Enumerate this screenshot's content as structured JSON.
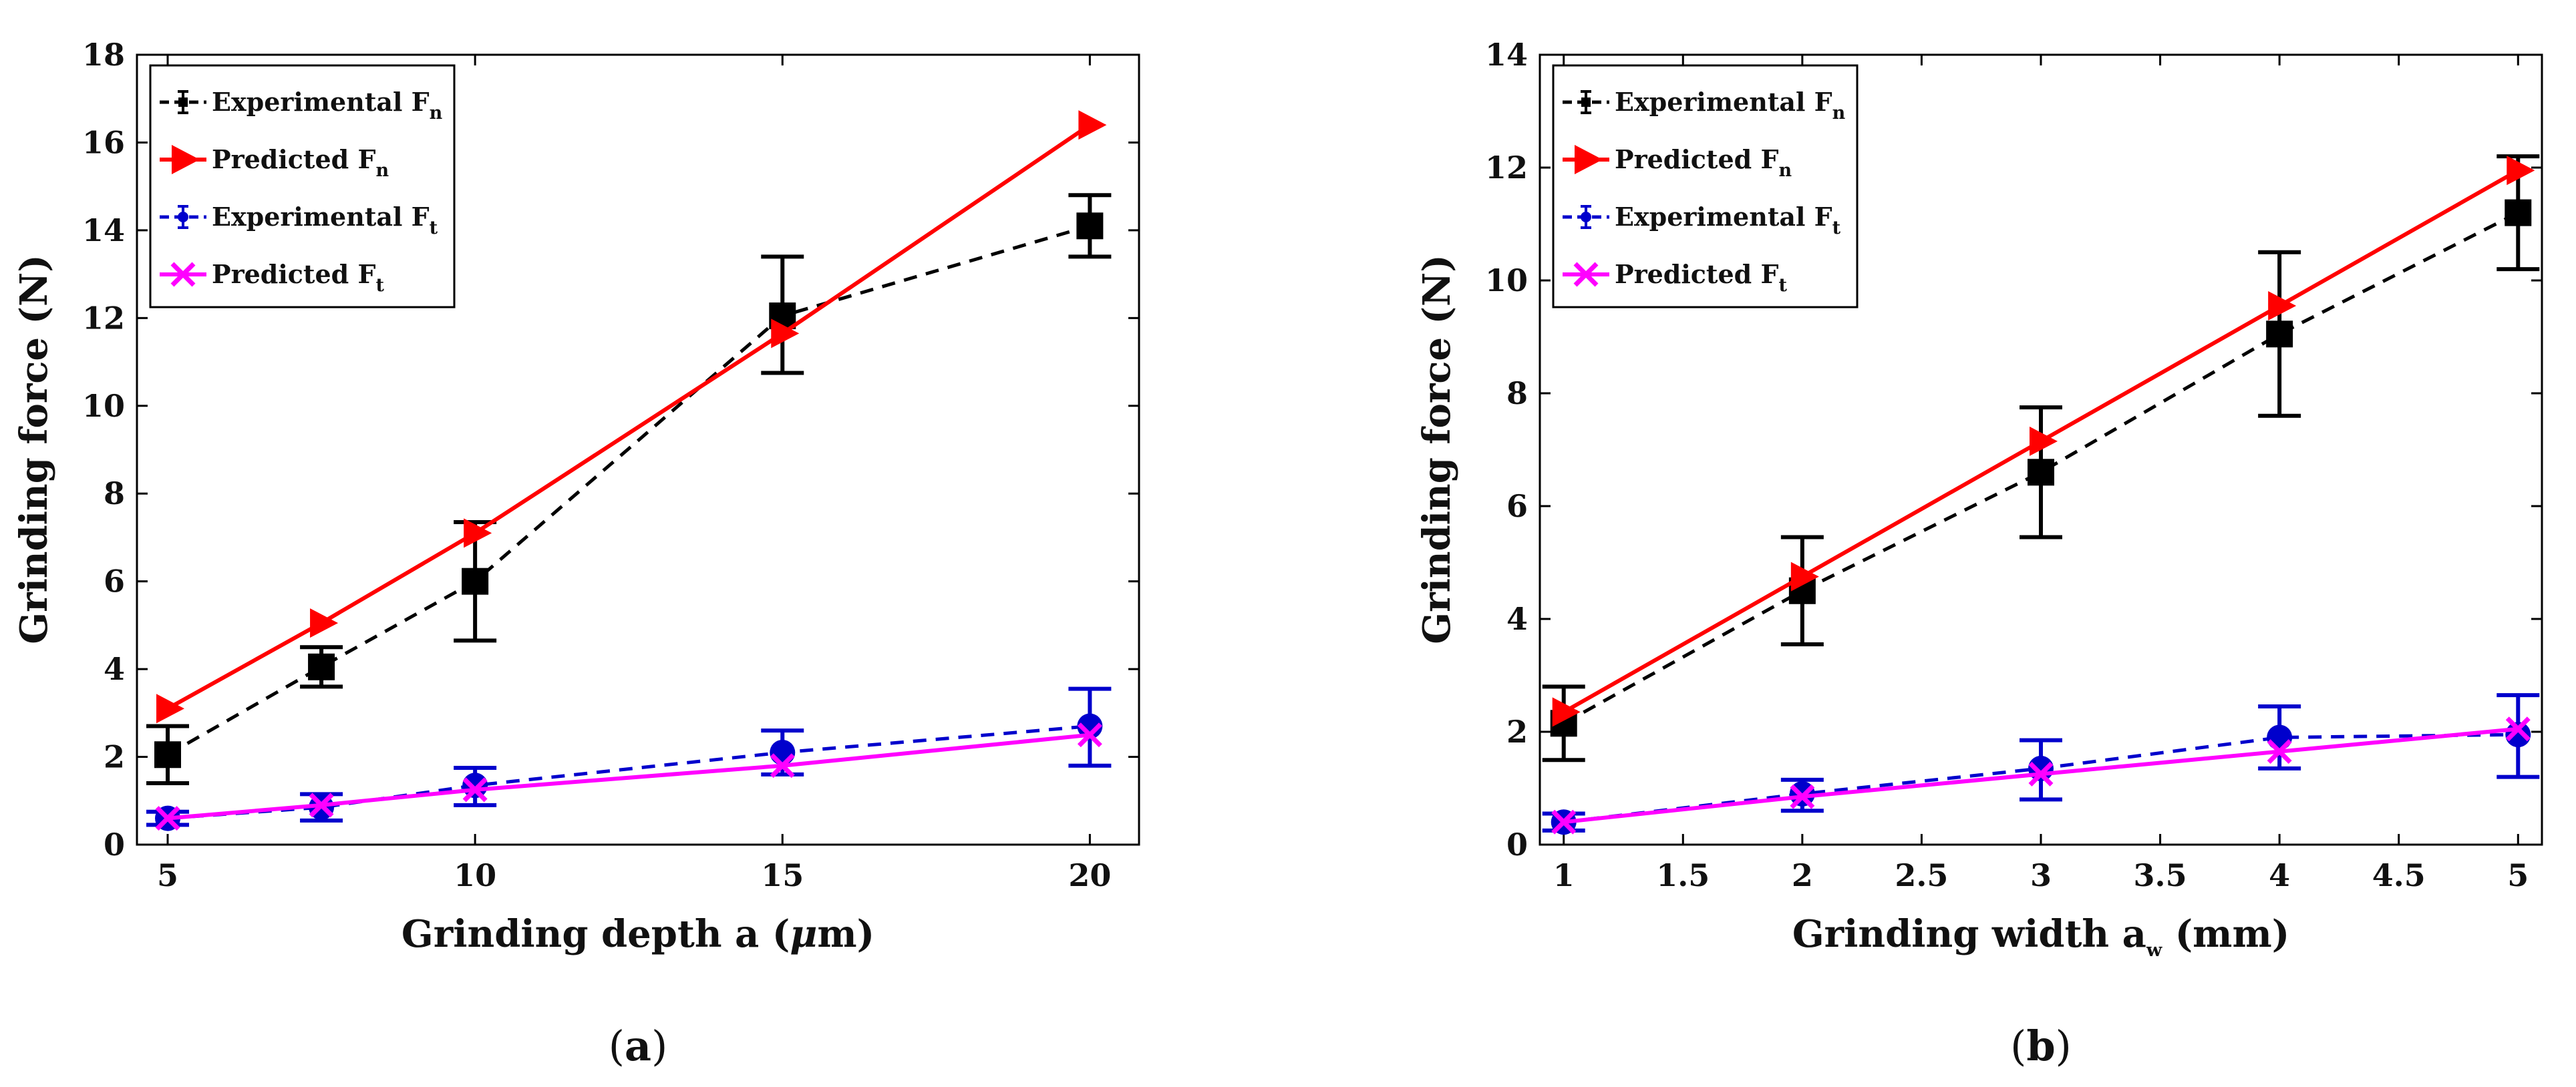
{
  "chart_data": [
    {
      "id": "a",
      "type": "line",
      "caption": {
        "open": "(",
        "letter": "a",
        "close": ")"
      },
      "xlabel": {
        "main": "Grinding depth a",
        "unit_open": "(",
        "unit_greek": "μ",
        "unit_rest": "m)"
      },
      "ylabel": "Grinding force (N)",
      "xlim": [
        4.5,
        20.8
      ],
      "ylim": [
        0,
        18
      ],
      "xticks": [
        5,
        10,
        15,
        20
      ],
      "yticks": [
        0,
        2,
        4,
        6,
        8,
        10,
        12,
        14,
        16,
        18
      ],
      "x": [
        5,
        7.5,
        10,
        15,
        20
      ],
      "grid": false,
      "legend_position": "top-left",
      "series": [
        {
          "name": "Experimental F",
          "sub": "n",
          "color": "#000000",
          "style": "dashed",
          "marker": "square",
          "values": [
            2.05,
            4.05,
            6.0,
            12.05,
            14.1
          ],
          "err_low": [
            1.4,
            3.6,
            4.65,
            10.75,
            13.4
          ],
          "err_high": [
            2.7,
            4.5,
            7.35,
            13.4,
            14.8
          ]
        },
        {
          "name": "Predicted F",
          "sub": "n",
          "color": "#ff0000",
          "style": "solid",
          "marker": "triangle-right",
          "values": [
            3.1,
            5.05,
            7.1,
            11.65,
            16.4
          ]
        },
        {
          "name": "Experimental F",
          "sub": "t",
          "color": "#0000cc",
          "style": "dashed",
          "marker": "circle",
          "values": [
            0.6,
            0.85,
            1.35,
            2.1,
            2.7
          ],
          "err_low": [
            0.45,
            0.55,
            0.9,
            1.6,
            1.8
          ],
          "err_high": [
            0.75,
            1.15,
            1.75,
            2.6,
            3.55
          ]
        },
        {
          "name": "Predicted F",
          "sub": "t",
          "color": "#ff00ff",
          "style": "solid",
          "marker": "x",
          "values": [
            0.6,
            0.9,
            1.25,
            1.8,
            2.5
          ]
        }
      ]
    },
    {
      "id": "b",
      "type": "line",
      "caption": {
        "open": "(",
        "letter": "b",
        "close": ")"
      },
      "xlabel": {
        "main": "Grinding width a",
        "sub": "w",
        "unit": "(mm)"
      },
      "ylabel": "Grinding force (N)",
      "xlim": [
        0.9,
        5.1
      ],
      "ylim": [
        0,
        14
      ],
      "xticks": [
        1,
        1.5,
        2,
        2.5,
        3,
        3.5,
        4,
        4.5,
        5
      ],
      "yticks": [
        0,
        2,
        4,
        6,
        8,
        10,
        12,
        14
      ],
      "x": [
        1,
        2,
        3,
        4,
        5
      ],
      "grid": false,
      "legend_position": "top-left",
      "series": [
        {
          "name": "Experimental F",
          "sub": "n",
          "color": "#000000",
          "style": "dashed",
          "marker": "square",
          "values": [
            2.15,
            4.5,
            6.6,
            9.05,
            11.2
          ],
          "err_low": [
            1.5,
            3.55,
            5.45,
            7.6,
            10.2
          ],
          "err_high": [
            2.8,
            5.45,
            7.75,
            10.5,
            12.2
          ]
        },
        {
          "name": "Predicted F",
          "sub": "n",
          "color": "#ff0000",
          "style": "solid",
          "marker": "triangle-right",
          "values": [
            2.35,
            4.75,
            7.15,
            9.55,
            11.95
          ]
        },
        {
          "name": "Experimental F",
          "sub": "t",
          "color": "#0000cc",
          "style": "dashed",
          "marker": "circle",
          "values": [
            0.4,
            0.9,
            1.35,
            1.9,
            1.95
          ],
          "err_low": [
            0.25,
            0.6,
            0.8,
            1.35,
            1.2
          ],
          "err_high": [
            0.55,
            1.15,
            1.85,
            2.45,
            2.65
          ]
        },
        {
          "name": "Predicted F",
          "sub": "t",
          "color": "#ff00ff",
          "style": "solid",
          "marker": "x",
          "values": [
            0.4,
            0.85,
            1.25,
            1.65,
            2.05
          ]
        }
      ]
    }
  ]
}
